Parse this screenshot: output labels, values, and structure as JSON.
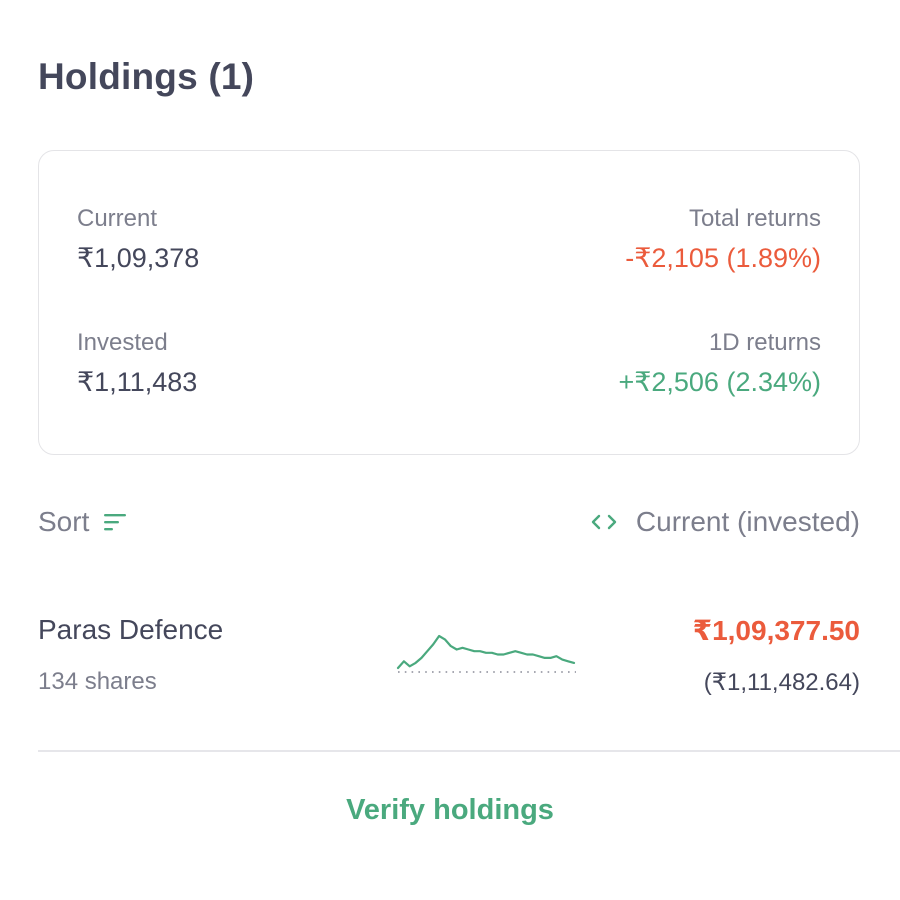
{
  "header": {
    "title": "Holdings (1)"
  },
  "summary": {
    "current_label": "Current",
    "current_value": "₹1,09,378",
    "total_returns_label": "Total returns",
    "total_returns_value": "-₹2,105 (1.89%)",
    "invested_label": "Invested",
    "invested_value": "₹1,11,483",
    "oneday_returns_label": "1D returns",
    "oneday_returns_value": "+₹2,506 (2.34%)"
  },
  "controls": {
    "sort_label": "Sort",
    "view_label": "Current (invested)"
  },
  "holdings": [
    {
      "name": "Paras Defence",
      "shares": "134 shares",
      "current": "₹1,09,377.50",
      "invested": "(₹1,11,482.64)",
      "sparkline": [
        30,
        34,
        31,
        33,
        36,
        40,
        44,
        49,
        47,
        43,
        41,
        42,
        41,
        40,
        40,
        39,
        39,
        38,
        38,
        39,
        40,
        39,
        38,
        38,
        37,
        36,
        36,
        37,
        35,
        34,
        33
      ]
    }
  ],
  "footer": {
    "verify_label": "Verify holdings"
  },
  "colors": {
    "negative": "#eb5b3c",
    "positive": "#4aa97e",
    "text_primary": "#44475b",
    "text_secondary": "#7c7e8c"
  },
  "icons": {
    "sort": "sort-lines-icon",
    "view_toggle": "code-brackets-icon"
  }
}
